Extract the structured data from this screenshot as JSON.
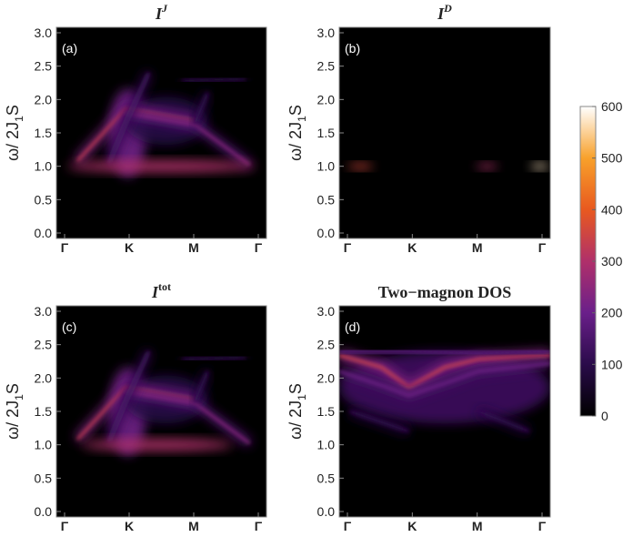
{
  "chart_data": [
    {
      "type": "heatmap",
      "title": "I",
      "title_sup": "J",
      "panel_label": "(a)",
      "ylabel": [
        "ω/ 2J",
        "1",
        "S"
      ],
      "categories": [
        "Γ",
        "K",
        "M",
        "Γ"
      ],
      "ylim": [
        0,
        3
      ],
      "yticks": [
        {
          "value": 0,
          "label": "0.0"
        },
        0.5,
        {
          "value": 1,
          "label": "1.0"
        },
        1.5,
        {
          "value": 2,
          "label": "2.0"
        },
        2.5,
        {
          "value": 3,
          "label": "3.0"
        }
      ]
    },
    {
      "type": "heatmap",
      "title": "I",
      "title_sup": "D",
      "panel_label": "(b)",
      "ylabel": [
        "ω/ 2J",
        "1",
        "S"
      ],
      "categories": [
        "Γ",
        "K",
        "M",
        "Γ"
      ],
      "ylim": [
        0,
        3
      ],
      "yticks": [
        {
          "value": 0,
          "label": "0.0"
        },
        0.5,
        {
          "value": 1,
          "label": "1.0"
        },
        1.5,
        {
          "value": 2,
          "label": "2.0"
        },
        2.5,
        {
          "value": 3,
          "label": "3.0"
        }
      ]
    },
    {
      "type": "heatmap",
      "title": "I",
      "title_sup": "tot",
      "panel_label": "(c)",
      "ylabel": [
        "ω/ 2J",
        "1",
        "S"
      ],
      "categories": [
        "Γ",
        "K",
        "M",
        "Γ"
      ],
      "ylim": [
        0,
        3
      ],
      "yticks": [
        {
          "value": 0,
          "label": "0.0"
        },
        0.5,
        {
          "value": 1,
          "label": "1.0"
        },
        1.5,
        {
          "value": 2,
          "label": "2.0"
        },
        2.5,
        {
          "value": 3,
          "label": "3.0"
        }
      ]
    },
    {
      "type": "heatmap",
      "title": "Two−magnon DOS",
      "panel_label": "(d)",
      "ylabel": [
        "ω/ 2J",
        "1",
        "S"
      ],
      "categories": [
        "Γ",
        "K",
        "M",
        "Γ"
      ],
      "ylim": [
        0,
        3
      ],
      "yticks": [
        {
          "value": 0,
          "label": "0.0"
        },
        0.5,
        {
          "value": 1,
          "label": "1.0"
        },
        1.5,
        {
          "value": 2,
          "label": "2.0"
        },
        2.5,
        {
          "value": 3,
          "label": "3.0"
        }
      ]
    }
  ],
  "colorbar": {
    "lim": [
      0,
      600
    ],
    "ticks": [
      0,
      100,
      200,
      300,
      400,
      500,
      600
    ],
    "colors": [
      "#000000",
      "#2a0b4a",
      "#6a1f8a",
      "#b0306a",
      "#e8591f",
      "#f8a12b",
      "#ffffff"
    ]
  }
}
